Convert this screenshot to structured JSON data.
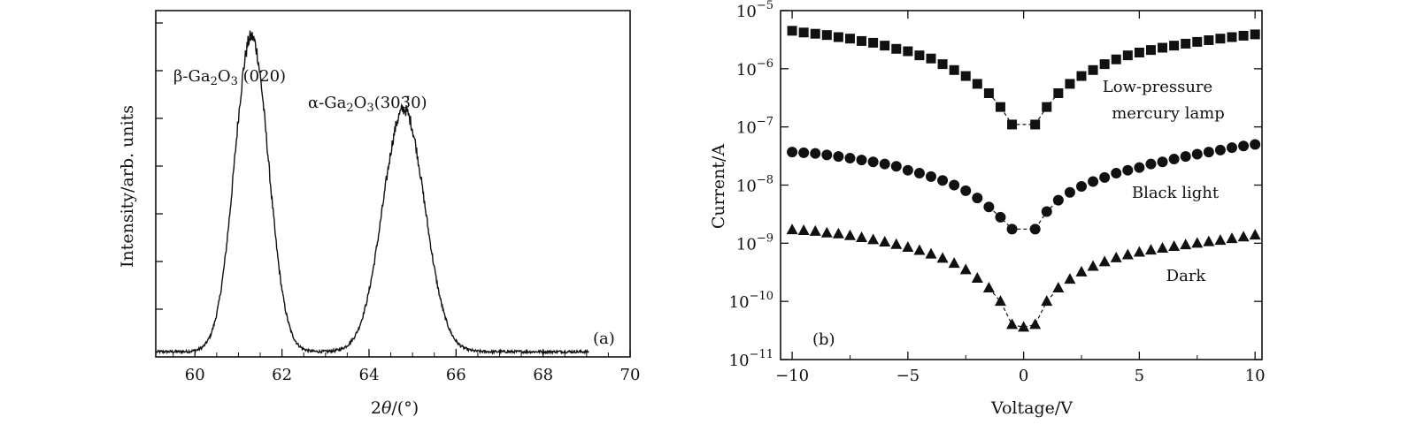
{
  "chart_data": [
    {
      "type": "line",
      "panel_label": "(a)",
      "xlabel": "2θ/(°)",
      "ylabel": "Intensity/arb. units",
      "xlim": [
        59.1,
        70
      ],
      "ylim": [
        0,
        1
      ],
      "x_ticks": [
        "60",
        "62",
        "64",
        "66",
        "68",
        "70"
      ],
      "x_tick_values": [
        60,
        62,
        64,
        66,
        68,
        70
      ],
      "y_ticks_count": 7,
      "annotations": [
        {
          "text": "β-Ga2O3 (020)",
          "x": 61.3
        },
        {
          "text": "α-Ga2O3(3030)",
          "x": 64.8
        }
      ],
      "peaks": [
        {
          "center": 61.3,
          "amplitude": 0.91,
          "width": 0.55
        },
        {
          "center": 64.8,
          "amplitude": 0.7,
          "width": 0.68
        }
      ],
      "baseline": 0.015
    },
    {
      "type": "scatter",
      "panel_label": "(b)",
      "xlabel": "Voltage/V",
      "ylabel": "Current/A",
      "xlim": [
        -10.5,
        10.3
      ],
      "ylog": true,
      "ylim": [
        1e-11,
        1e-05
      ],
      "x_ticks": [
        "−10",
        "−5",
        "0",
        "5",
        "10"
      ],
      "x_tick_values": [
        -10,
        -5,
        0,
        5,
        10
      ],
      "y_ticks": [
        {
          "base": "10",
          "exp": "−5",
          "value": 1e-05
        },
        {
          "base": "10",
          "exp": "−6",
          "value": 1e-06
        },
        {
          "base": "10",
          "exp": "−7",
          "value": 1e-07
        },
        {
          "base": "10",
          "exp": "−8",
          "value": 1e-08
        },
        {
          "base": "10",
          "exp": "−9",
          "value": 1e-09
        },
        {
          "base": "10",
          "exp": "−10",
          "value": 1e-10
        },
        {
          "base": "10",
          "exp": "−11",
          "value": 1e-11
        }
      ],
      "series": [
        {
          "name": "Low-pressure mercury lamp",
          "marker": "square",
          "x": [
            -10,
            -9.5,
            -9,
            -8.5,
            -8,
            -7.5,
            -7,
            -6.5,
            -6,
            -5.5,
            -5,
            -4.5,
            -4,
            -3.5,
            -3,
            -2.5,
            -2,
            -1.5,
            -1,
            -0.5,
            0.5,
            1,
            1.5,
            2,
            2.5,
            3,
            3.5,
            4,
            4.5,
            5,
            5.5,
            6,
            6.5,
            7,
            7.5,
            8,
            8.5,
            9,
            9.5,
            10
          ],
          "y": [
            4.5e-06,
            4.2e-06,
            4e-06,
            3.8e-06,
            3.5e-06,
            3.3e-06,
            3e-06,
            2.8e-06,
            2.5e-06,
            2.2e-06,
            2e-06,
            1.7e-06,
            1.5e-06,
            1.2e-06,
            9.5e-07,
            7.5e-07,
            5.5e-07,
            3.8e-07,
            2.2e-07,
            1.1e-07,
            1.1e-07,
            2.2e-07,
            3.8e-07,
            5.5e-07,
            7.5e-07,
            9.5e-07,
            1.2e-06,
            1.45e-06,
            1.7e-06,
            1.9e-06,
            2.1e-06,
            2.3e-06,
            2.5e-06,
            2.7e-06,
            2.9e-06,
            3.1e-06,
            3.3e-06,
            3.5e-06,
            3.7e-06,
            3.9e-06
          ]
        },
        {
          "name": "Black light",
          "marker": "circle",
          "x": [
            -10,
            -9.5,
            -9,
            -8.5,
            -8,
            -7.5,
            -7,
            -6.5,
            -6,
            -5.5,
            -5,
            -4.5,
            -4,
            -3.5,
            -3,
            -2.5,
            -2,
            -1.5,
            -1,
            -0.5,
            0.5,
            1,
            1.5,
            2,
            2.5,
            3,
            3.5,
            4,
            4.5,
            5,
            5.5,
            6,
            6.5,
            7,
            7.5,
            8,
            8.5,
            9,
            9.5,
            10
          ],
          "y": [
            3.7e-08,
            3.6e-08,
            3.5e-08,
            3.3e-08,
            3.1e-08,
            2.9e-08,
            2.7e-08,
            2.5e-08,
            2.3e-08,
            2.1e-08,
            1.8e-08,
            1.6e-08,
            1.4e-08,
            1.2e-08,
            1e-08,
            8e-09,
            6e-09,
            4.2e-09,
            2.8e-09,
            1.75e-09,
            1.75e-09,
            3.5e-09,
            5.5e-09,
            7.5e-09,
            9.5e-09,
            1.15e-08,
            1.35e-08,
            1.6e-08,
            1.8e-08,
            2e-08,
            2.3e-08,
            2.5e-08,
            2.8e-08,
            3.1e-08,
            3.4e-08,
            3.7e-08,
            4e-08,
            4.4e-08,
            4.7e-08,
            5e-08
          ]
        },
        {
          "name": "Dark",
          "marker": "triangle",
          "x": [
            -10,
            -9.5,
            -9,
            -8.5,
            -8,
            -7.5,
            -7,
            -6.5,
            -6,
            -5.5,
            -5,
            -4.5,
            -4,
            -3.5,
            -3,
            -2.5,
            -2,
            -1.5,
            -1,
            -0.5,
            0,
            0.5,
            1,
            1.5,
            2,
            2.5,
            3,
            3.5,
            4,
            4.5,
            5,
            5.5,
            6,
            6.5,
            7,
            7.5,
            8,
            8.5,
            9,
            9.5,
            10
          ],
          "y": [
            1.7e-09,
            1.65e-09,
            1.6e-09,
            1.5e-09,
            1.45e-09,
            1.35e-09,
            1.25e-09,
            1.15e-09,
            1.05e-09,
            9.5e-10,
            8.5e-10,
            7.5e-10,
            6.5e-10,
            5.5e-10,
            4.5e-10,
            3.5e-10,
            2.5e-10,
            1.7e-10,
            1e-10,
            4e-11,
            3.6e-11,
            4e-11,
            1e-10,
            1.7e-10,
            2.4e-10,
            3.2e-10,
            4e-10,
            4.8e-10,
            5.6e-10,
            6.3e-10,
            7e-10,
            7.6e-10,
            8.2e-10,
            8.8e-10,
            9.4e-10,
            1e-09,
            1.06e-09,
            1.12e-09,
            1.2e-09,
            1.28e-09,
            1.38e-09
          ]
        }
      ]
    }
  ]
}
